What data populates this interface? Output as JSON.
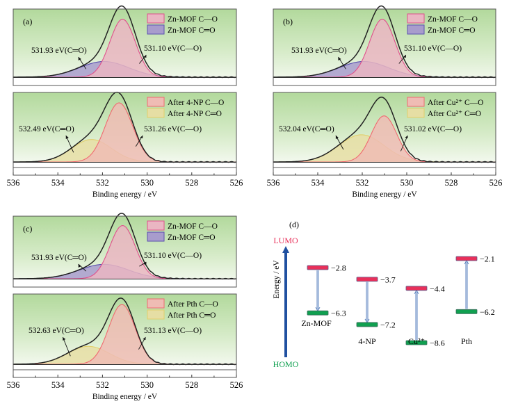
{
  "chart_data": [
    {
      "id": "a",
      "type": "area",
      "panel_label": "(a)",
      "xlabel": "Binding energy / eV",
      "xlim": [
        536,
        526
      ],
      "xticks": [
        536,
        534,
        532,
        530,
        528,
        526
      ],
      "subplots": [
        {
          "legend": [
            {
              "label": "Zn-MOF C—O",
              "stroke": "#e0508c",
              "fill": "#eab6c2"
            },
            {
              "label": "Zn-MOF C═O",
              "stroke": "#5a4fb0",
              "fill": "#a89ccc"
            }
          ],
          "peaks": [
            {
              "name": "C-O",
              "center": 531.1,
              "height": 1.0,
              "fwhm": 1.35,
              "stroke": "#e0508c",
              "fill": "#eab6c2"
            },
            {
              "name": "C=O",
              "center": 531.93,
              "height": 0.27,
              "fwhm": 2.6,
              "stroke": "#5a4fb0",
              "fill": "#a89ccc"
            }
          ],
          "annotations": [
            {
              "text": "531.93 eV(C═O)",
              "position": "left"
            },
            {
              "text": "531.10 eV(C—O)",
              "position": "right"
            }
          ]
        },
        {
          "legend": [
            {
              "label": "After 4-NP C—O",
              "stroke": "#f06a70",
              "fill": "#efbcb4"
            },
            {
              "label": "After 4-NP C═O",
              "stroke": "#e2cf6a",
              "fill": "#e6deA4"
            }
          ],
          "peaks": [
            {
              "name": "C-O",
              "center": 531.26,
              "height": 1.0,
              "fwhm": 1.45,
              "stroke": "#f06a70",
              "fill": "#efbcb4"
            },
            {
              "name": "C=O",
              "center": 532.49,
              "height": 0.38,
              "fwhm": 2.1,
              "stroke": "#e2cf6a",
              "fill": "#e6dea4"
            }
          ],
          "annotations": [
            {
              "text": "532.49 eV(C═O)",
              "position": "left"
            },
            {
              "text": "531.26 eV(C—O)",
              "position": "right"
            }
          ]
        }
      ]
    },
    {
      "id": "b",
      "type": "area",
      "panel_label": "(b)",
      "xlabel": "Binding energy / eV",
      "xlim": [
        536,
        526
      ],
      "xticks": [
        536,
        534,
        532,
        530,
        528,
        526
      ],
      "subplots": [
        {
          "legend": [
            {
              "label": "Zn-MOF C—O",
              "stroke": "#e0508c",
              "fill": "#eab6c2"
            },
            {
              "label": "Zn-MOF C═O",
              "stroke": "#5a4fb0",
              "fill": "#a89ccc"
            }
          ],
          "peaks": [
            {
              "name": "C-O",
              "center": 531.1,
              "height": 1.0,
              "fwhm": 1.35,
              "stroke": "#e0508c",
              "fill": "#eab6c2"
            },
            {
              "name": "C=O",
              "center": 531.93,
              "height": 0.27,
              "fwhm": 2.6,
              "stroke": "#5a4fb0",
              "fill": "#a89ccc"
            }
          ],
          "annotations": [
            {
              "text": "531.93 eV(C═O)",
              "position": "left"
            },
            {
              "text": "531.10 eV(C—O)",
              "position": "right"
            }
          ]
        },
        {
          "legend": [
            {
              "label": "After Cu²⁺ C—O",
              "stroke": "#f06a70",
              "fill": "#efbcb4"
            },
            {
              "label": "After Cu²⁺ C═O",
              "stroke": "#e2cf6a",
              "fill": "#e6dea4"
            }
          ],
          "peaks": [
            {
              "name": "C-O",
              "center": 531.02,
              "height": 0.78,
              "fwhm": 1.35,
              "stroke": "#f06a70",
              "fill": "#efbcb4"
            },
            {
              "name": "C=O",
              "center": 532.04,
              "height": 0.46,
              "fwhm": 2.4,
              "stroke": "#e2cf6a",
              "fill": "#e6dea4"
            }
          ],
          "annotations": [
            {
              "text": "532.04 eV(C═O)",
              "position": "left"
            },
            {
              "text": "531.02 eV(C—O)",
              "position": "right"
            }
          ]
        }
      ]
    },
    {
      "id": "c",
      "type": "area",
      "panel_label": "(c)",
      "xlabel": "Binding energy / eV",
      "xlim": [
        536,
        526
      ],
      "xticks": [
        536,
        534,
        532,
        530,
        528,
        526
      ],
      "subplots": [
        {
          "legend": [
            {
              "label": "Zn-MOF C—O",
              "stroke": "#e0508c",
              "fill": "#eab6c2"
            },
            {
              "label": "Zn-MOF C═O",
              "stroke": "#5a4fb0",
              "fill": "#a89ccc"
            }
          ],
          "peaks": [
            {
              "name": "C-O",
              "center": 531.1,
              "height": 1.0,
              "fwhm": 1.35,
              "stroke": "#e0508c",
              "fill": "#eab6c2"
            },
            {
              "name": "C=O",
              "center": 531.93,
              "height": 0.27,
              "fwhm": 2.6,
              "stroke": "#5a4fb0",
              "fill": "#a89ccc"
            }
          ],
          "annotations": [
            {
              "text": "531.93 eV(C═O)",
              "position": "left"
            },
            {
              "text": "531.10 eV(C—O)",
              "position": "right"
            }
          ]
        },
        {
          "legend": [
            {
              "label": "After Pth C—O",
              "stroke": "#f06a70",
              "fill": "#efbcb4"
            },
            {
              "label": "After Pth C═O",
              "stroke": "#e2cf6a",
              "fill": "#e6dea4"
            }
          ],
          "peaks": [
            {
              "name": "C-O",
              "center": 531.13,
              "height": 1.0,
              "fwhm": 1.4,
              "stroke": "#f06a70",
              "fill": "#efbcb4"
            },
            {
              "name": "C=O",
              "center": 532.63,
              "height": 0.3,
              "fwhm": 2.2,
              "stroke": "#e2cf6a",
              "fill": "#e6dea4"
            }
          ],
          "annotations": [
            {
              "text": "532.63 eV(C═O)",
              "position": "left"
            },
            {
              "text": "531.13 eV(C—O)",
              "position": "right"
            }
          ]
        }
      ]
    },
    {
      "id": "d",
      "type": "energy-level-diagram",
      "panel_label": "(d)",
      "ylabel": "Energy / eV",
      "axis_top_label": "LUMO",
      "axis_bottom_label": "HOMO",
      "lumo_color": "#e8305a",
      "homo_color": "#10a050",
      "axis_color": "#2050a0",
      "categories": [
        "Zn-MOF",
        "4-NP",
        "Cu²⁺",
        "Pth"
      ],
      "series": [
        {
          "name": "LUMO",
          "values": [
            -2.8,
            -3.7,
            -4.4,
            -2.1
          ]
        },
        {
          "name": "HOMO",
          "values": [
            -6.3,
            -7.2,
            -8.6,
            -6.2
          ]
        }
      ],
      "value_labels": {
        "lumo": [
          "−2.8",
          "−3.7",
          "−4.4",
          "−2.1"
        ],
        "homo": [
          "−6.3",
          "−7.2",
          "−8.6",
          "−6.2"
        ]
      },
      "arrow_direction": [
        "down",
        "down",
        "up",
        "up"
      ]
    }
  ]
}
